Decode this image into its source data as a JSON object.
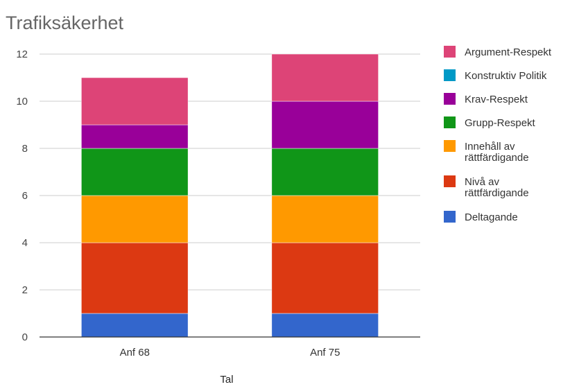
{
  "chart_data": {
    "type": "bar",
    "stacked": true,
    "title": "Trafiksäkerhet",
    "xlabel": "Tal",
    "ylabel": "",
    "ylim": [
      0,
      12
    ],
    "yticks": [
      "0",
      "2",
      "4",
      "6",
      "8",
      "10",
      "12"
    ],
    "grid": true,
    "legend": "right",
    "categories": [
      "Anf 68",
      "Anf 75"
    ],
    "series": [
      {
        "name": "Deltagande",
        "color": "#3366cc",
        "values": [
          1,
          1
        ],
        "legend_lines": [
          "Deltagande"
        ]
      },
      {
        "name": "Nivå av rättfärdigande",
        "color": "#dc3912",
        "values": [
          3,
          3
        ],
        "legend_lines": [
          "Nivå av",
          "rättfärdigande"
        ]
      },
      {
        "name": "Innehåll av rättfärdigande",
        "color": "#ff9900",
        "values": [
          2,
          2
        ],
        "legend_lines": [
          "Innehåll av",
          "rättfärdigande"
        ]
      },
      {
        "name": "Grupp-Respekt",
        "color": "#109618",
        "values": [
          2,
          2
        ],
        "legend_lines": [
          "Grupp-Respekt"
        ]
      },
      {
        "name": "Krav-Respekt",
        "color": "#990099",
        "values": [
          1,
          2
        ],
        "legend_lines": [
          "Krav-Respekt"
        ]
      },
      {
        "name": "Konstruktiv Politik",
        "color": "#0099c6",
        "values": [
          0,
          0
        ],
        "legend_lines": [
          "Konstruktiv Politik"
        ]
      },
      {
        "name": "Argument-Respekt",
        "color": "#dd4477",
        "values": [
          2,
          2
        ],
        "legend_lines": [
          "Argument-Respekt"
        ]
      }
    ]
  }
}
